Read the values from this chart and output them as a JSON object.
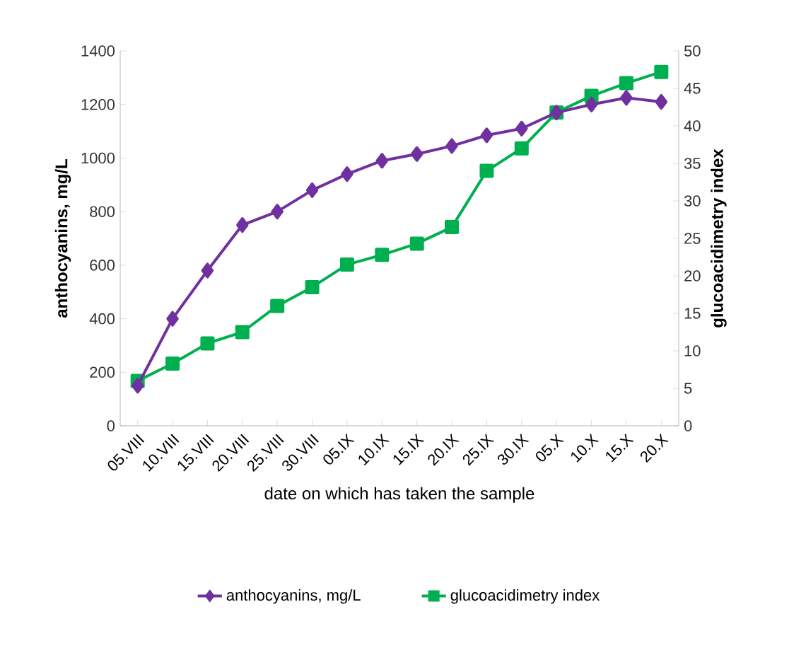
{
  "chart_data": {
    "type": "line",
    "categories": [
      "05.VIII",
      "10.VIII",
      "15.VIII",
      "20.VIII",
      "25.VIII",
      "30.VIII",
      "05.IX",
      "10.IX",
      "15.IX",
      "20.IX",
      "25.IX",
      "30.IX",
      "05.X",
      "10.X",
      "15.X",
      "20.X"
    ],
    "series": [
      {
        "name": "anthocyanins, mg/L",
        "color": "#7030a0",
        "marker": "diamond",
        "values": [
          150,
          400,
          580,
          750,
          800,
          880,
          940,
          990,
          1015,
          1045,
          1085,
          1110,
          1170,
          1200,
          1225,
          1210
        ]
      },
      {
        "name": "glucoacidimetry index",
        "color": "#00b050",
        "marker": "square",
        "axis": "y2",
        "values": [
          6,
          8.3,
          11,
          12.5,
          16,
          18.5,
          21.5,
          22.8,
          24.3,
          26.5,
          34,
          37,
          41.8,
          44,
          45.7,
          47.2
        ]
      }
    ],
    "xlabel": "date on which has taken the sample",
    "ylabel": "anthocyanins, mg/L",
    "y2label": "glucoacidimetry index",
    "ylim": [
      0,
      1400
    ],
    "yticks": [
      0,
      200,
      400,
      600,
      800,
      1000,
      1200,
      1400
    ],
    "y2lim": [
      0,
      50
    ],
    "y2ticks": [
      0,
      5,
      10,
      15,
      20,
      25,
      30,
      35,
      40,
      45,
      50
    ],
    "grid": false,
    "legend": "bottom"
  }
}
